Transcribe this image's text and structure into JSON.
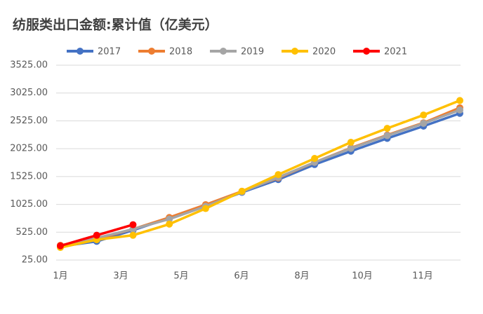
{
  "chart_data": {
    "type": "line",
    "title": "纺服类出口金额:累计值（亿美元）",
    "categories": [
      null,
      null,
      null,
      null,
      null,
      null,
      null,
      null,
      null,
      null,
      null,
      null
    ],
    "xtick_labels": [
      "1月",
      "3月",
      "5月",
      "6月",
      "8月",
      "10月",
      "11月"
    ],
    "series": [
      {
        "name": "2017",
        "color": "#4472c4",
        "values": [
          270,
          360,
          560,
          780,
          1000,
          1240,
          1470,
          1740,
          1980,
          2210,
          2430,
          2660
        ]
      },
      {
        "name": "2018",
        "color": "#ed7d31",
        "values": [
          290,
          400,
          580,
          790,
          1020,
          1260,
          1500,
          1780,
          2040,
          2270,
          2490,
          2760
        ]
      },
      {
        "name": "2019",
        "color": "#a5a5a5",
        "values": [
          280,
          420,
          580,
          760,
          990,
          1250,
          1510,
          1780,
          2030,
          2260,
          2480,
          2720
        ]
      },
      {
        "name": "2020",
        "color": "#ffc000",
        "values": [
          250,
          390,
          470,
          670,
          950,
          1260,
          1560,
          1850,
          2140,
          2390,
          2630,
          2890
        ]
      },
      {
        "name": "2021",
        "color": "#ff0000",
        "values": [
          280,
          470,
          660,
          null,
          null,
          null,
          null,
          null,
          null,
          null,
          null,
          null
        ]
      }
    ],
    "ylim": [
      25,
      3525
    ],
    "yticks": [
      {
        "value": 25,
        "label": "25.00"
      },
      {
        "value": 525,
        "label": "525.00"
      },
      {
        "value": 1025,
        "label": "1025.00"
      },
      {
        "value": 1525,
        "label": "1525.00"
      },
      {
        "value": 2025,
        "label": "2025.00"
      },
      {
        "value": 2525,
        "label": "2525.00"
      },
      {
        "value": 3025,
        "label": "3025.00"
      },
      {
        "value": 3525,
        "label": "3525.00"
      }
    ],
    "grid": true,
    "legend": "top"
  }
}
